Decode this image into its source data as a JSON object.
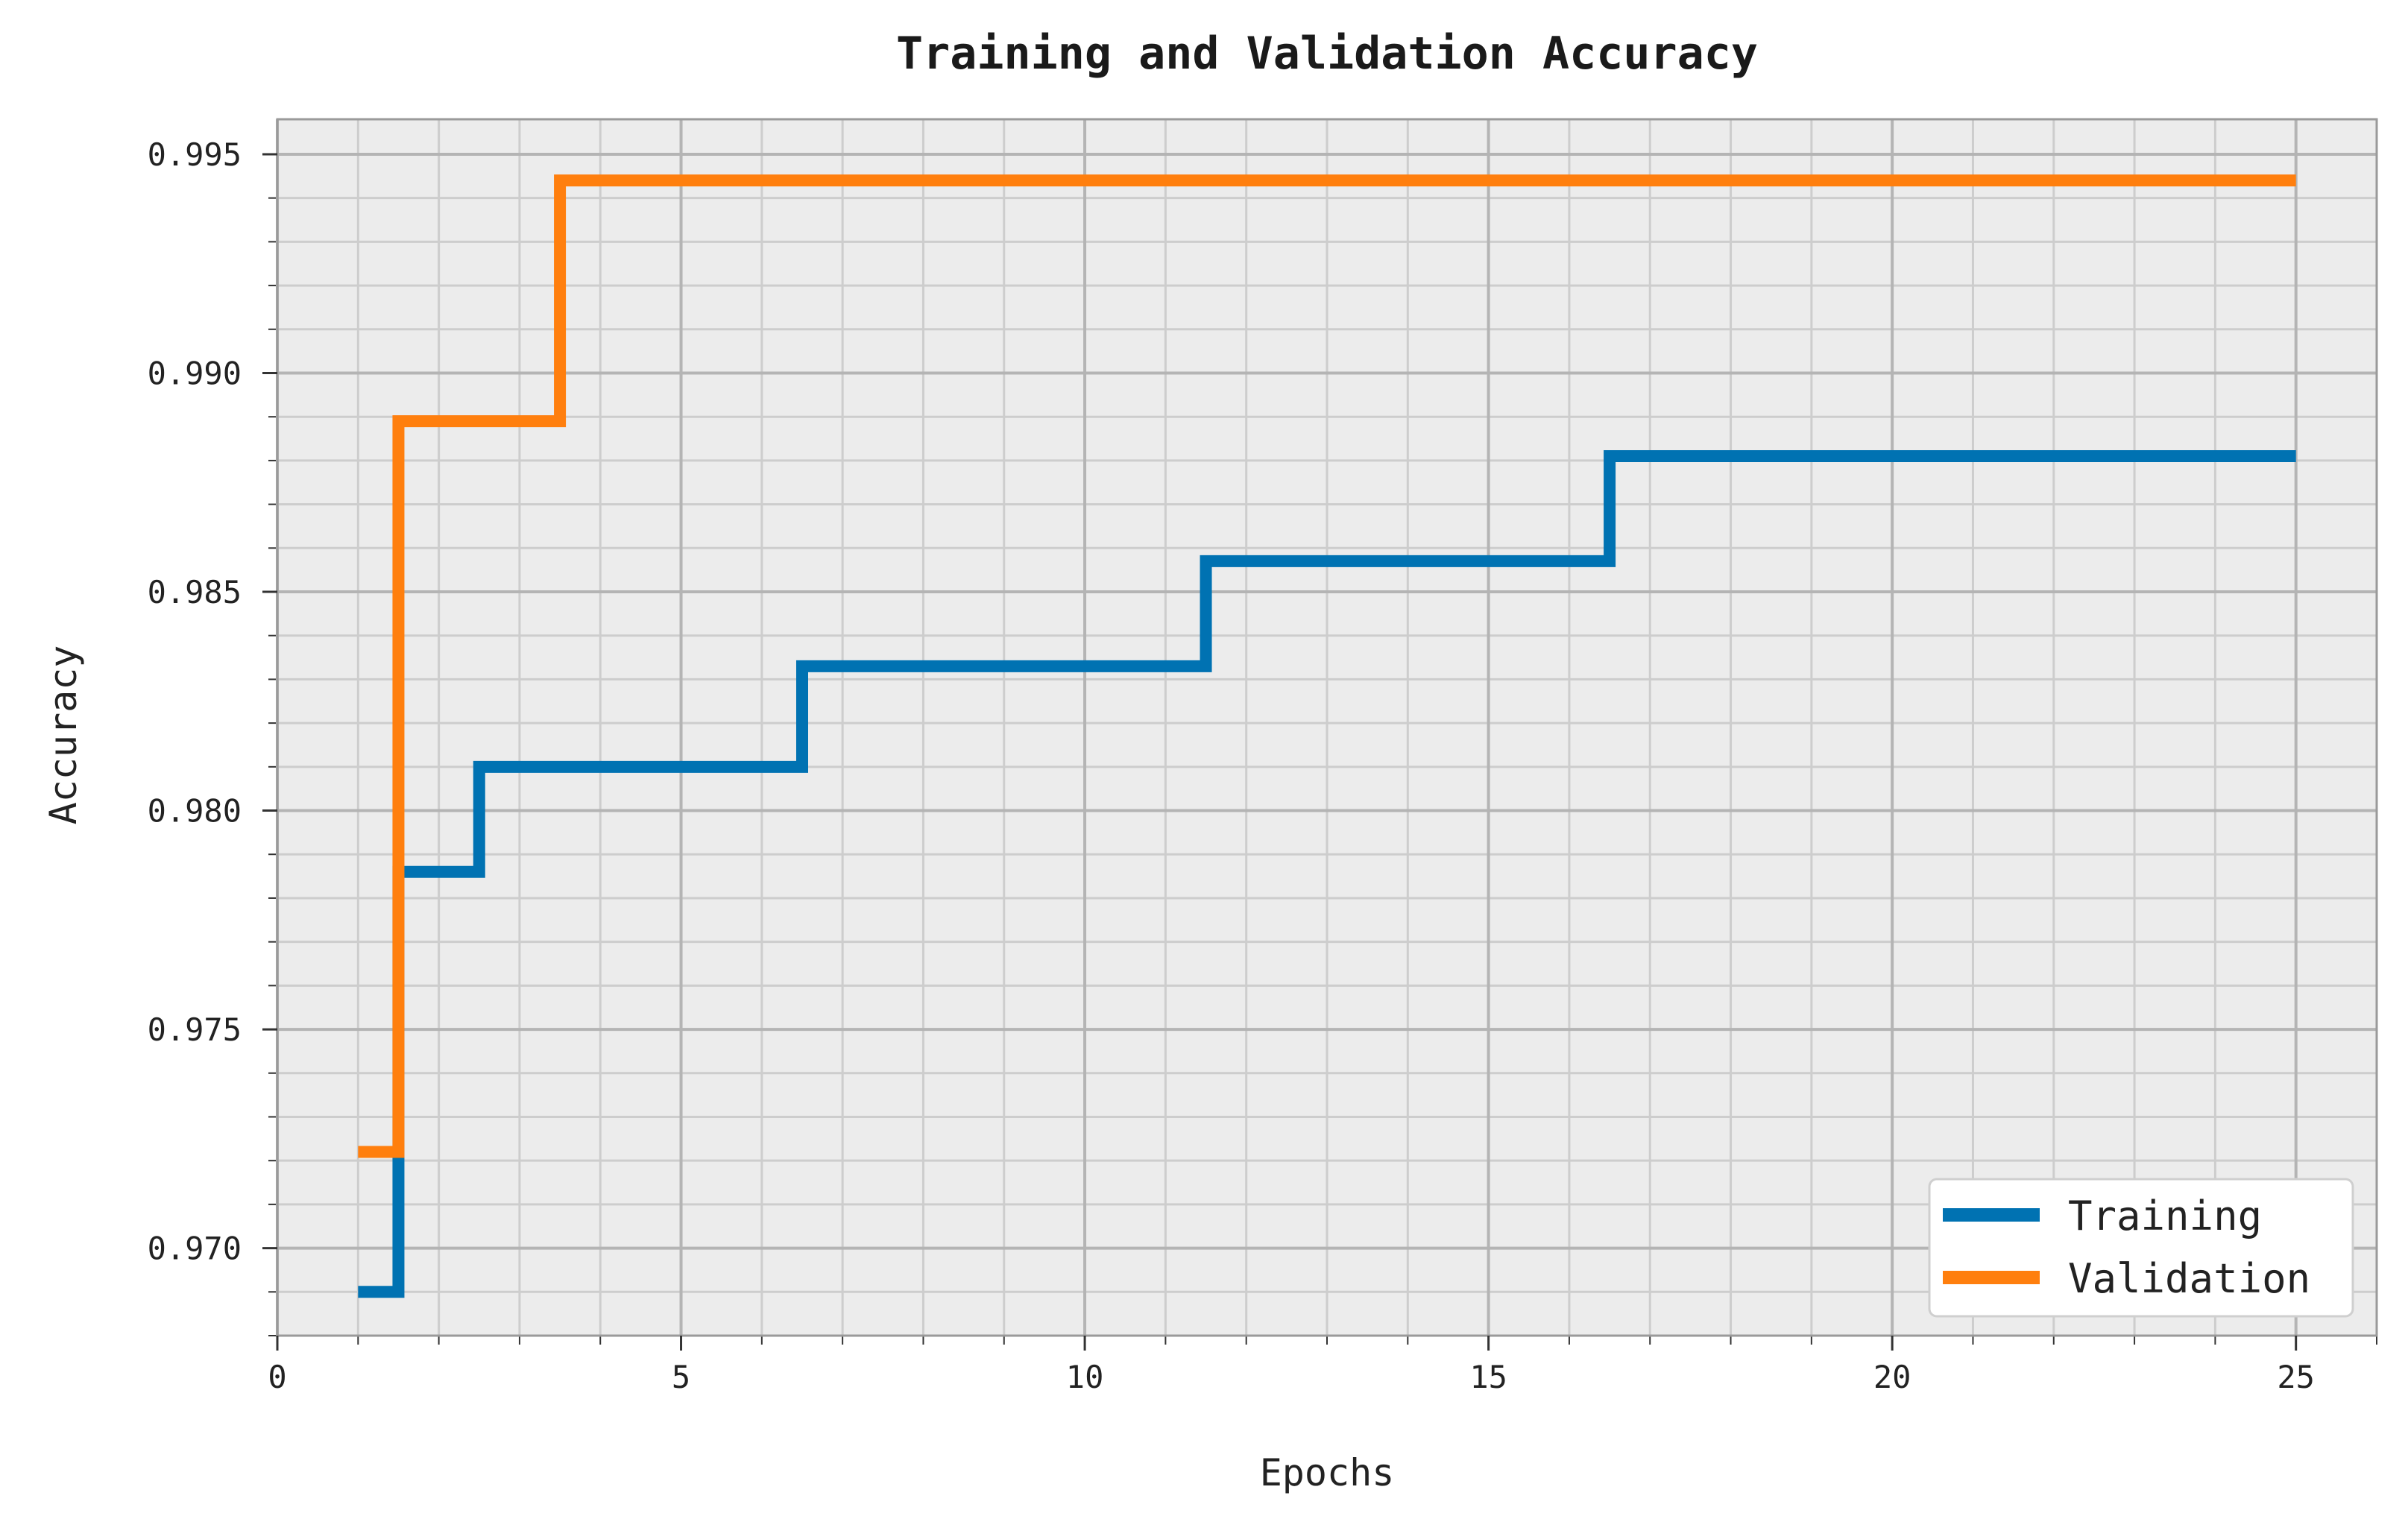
{
  "chart_data": {
    "type": "line",
    "title": "Training and Validation Accuracy",
    "xlabel": "Epochs",
    "ylabel": "Accuracy",
    "xlim": [
      0,
      26
    ],
    "ylim": [
      0.968,
      0.9958
    ],
    "x_ticks": [
      0,
      5,
      10,
      15,
      20,
      25
    ],
    "x_tick_labels": [
      "0",
      "5",
      "10",
      "15",
      "20",
      "25"
    ],
    "y_ticks": [
      0.97,
      0.975,
      0.98,
      0.985,
      0.99,
      0.995
    ],
    "y_tick_labels": [
      "0.970",
      "0.975",
      "0.980",
      "0.985",
      "0.990",
      "0.995"
    ],
    "grid": true,
    "minor_grid": true,
    "step": "mid",
    "legend_position": "lower-right",
    "x": [
      1,
      2,
      3,
      4,
      5,
      6,
      7,
      8,
      9,
      10,
      11,
      12,
      13,
      14,
      15,
      16,
      17,
      18,
      19,
      20,
      21,
      22,
      23,
      24,
      25
    ],
    "series": [
      {
        "name": "Training",
        "color": "#0072b2",
        "values": [
          0.969,
          0.9786,
          0.981,
          0.981,
          0.981,
          0.981,
          0.9833,
          0.9833,
          0.9833,
          0.9833,
          0.9833,
          0.9857,
          0.9857,
          0.9857,
          0.9857,
          0.9857,
          0.9881,
          0.9881,
          0.9881,
          0.9881,
          0.9881,
          0.9881,
          0.9881,
          0.9881,
          0.9881
        ]
      },
      {
        "name": "Validation",
        "color": "#ff7f0e",
        "values": [
          0.9722,
          0.9889,
          0.9889,
          0.9944,
          0.9944,
          0.9944,
          0.9944,
          0.9944,
          0.9944,
          0.9944,
          0.9944,
          0.9944,
          0.9944,
          0.9944,
          0.9944,
          0.9944,
          0.9944,
          0.9944,
          0.9944,
          0.9944,
          0.9944,
          0.9944,
          0.9944,
          0.9944,
          0.9944
        ]
      }
    ]
  },
  "colors": {
    "plot_background": "#ececec",
    "grid_major": "#b4b4b4",
    "grid_minor": "#cdcdcd"
  }
}
